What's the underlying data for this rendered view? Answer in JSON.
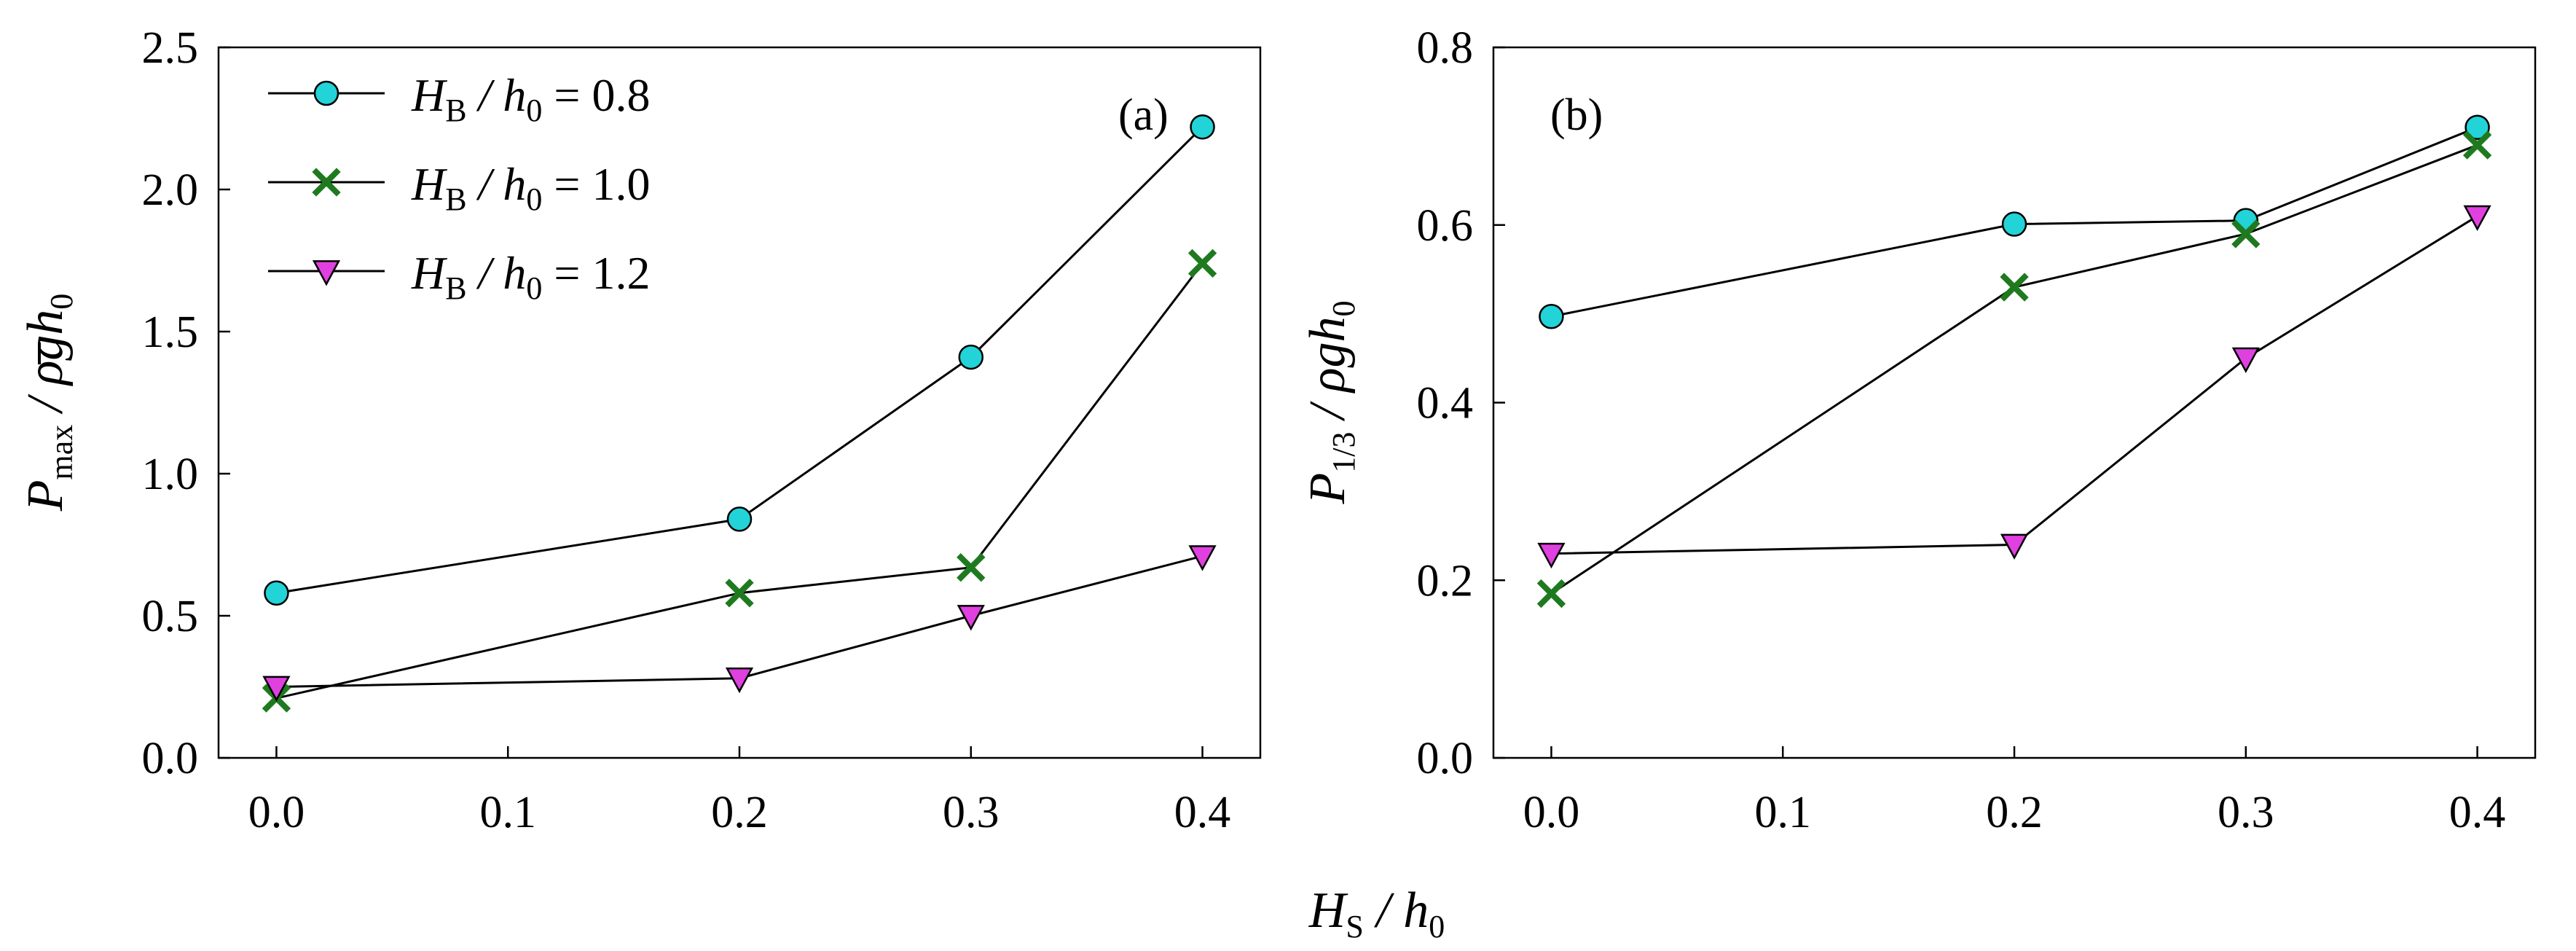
{
  "chart_data": [
    {
      "type": "line",
      "panel_label": "(a)",
      "ylabel": "P̄max / ρgh0",
      "ylabel_parts": {
        "symbol": "P",
        "subscript": "max",
        "rest": " / ρgh",
        "rest_sub": "0"
      },
      "xlabel": "HS / h0",
      "x": [
        0.0,
        0.2,
        0.3,
        0.4
      ],
      "xlim": [
        -0.025,
        0.425
      ],
      "ylim": [
        0.0,
        2.5
      ],
      "xticks": [
        "0.0",
        "0.1",
        "0.2",
        "0.3",
        "0.4"
      ],
      "xtick_values": [
        0.0,
        0.1,
        0.2,
        0.3,
        0.4
      ],
      "yticks": [
        "0.0",
        "0.5",
        "1.0",
        "1.5",
        "2.0",
        "2.5"
      ],
      "ytick_values": [
        0.0,
        0.5,
        1.0,
        1.5,
        2.0,
        2.5
      ],
      "legend_position": "top-left",
      "series": [
        {
          "name": "HB / h0 = 0.8",
          "values": [
            0.58,
            0.84,
            1.41,
            2.22
          ],
          "marker": "circle",
          "color": "#22d3d8"
        },
        {
          "name": "HB / h0 = 1.0",
          "values": [
            0.21,
            0.58,
            0.67,
            1.74
          ],
          "marker": "x",
          "color": "#1f7a1f"
        },
        {
          "name": "HB / h0 = 1.2",
          "values": [
            0.25,
            0.28,
            0.5,
            0.71
          ],
          "marker": "triangle-down",
          "color": "#e040e0"
        }
      ]
    },
    {
      "type": "line",
      "panel_label": "(b)",
      "ylabel": "P̄1/3 / ρgh0",
      "ylabel_parts": {
        "symbol": "P",
        "subscript": "1/3",
        "rest": " / ρgh",
        "rest_sub": "0"
      },
      "xlabel": "HS / h0",
      "x": [
        0.0,
        0.2,
        0.3,
        0.4
      ],
      "xlim": [
        -0.025,
        0.425
      ],
      "ylim": [
        0.0,
        0.8
      ],
      "xticks": [
        "0.0",
        "0.1",
        "0.2",
        "0.3",
        "0.4"
      ],
      "xtick_values": [
        0.0,
        0.1,
        0.2,
        0.3,
        0.4
      ],
      "yticks": [
        "0.0",
        "0.2",
        "0.4",
        "0.6",
        "0.8"
      ],
      "ytick_values": [
        0.0,
        0.2,
        0.4,
        0.6,
        0.8
      ],
      "series": [
        {
          "name": "HB / h0 = 0.8",
          "values": [
            0.497,
            0.601,
            0.605,
            0.71
          ],
          "marker": "circle",
          "color": "#22d3d8"
        },
        {
          "name": "HB / h0 = 1.0",
          "values": [
            0.185,
            0.53,
            0.59,
            0.69
          ],
          "marker": "x",
          "color": "#1f7a1f"
        },
        {
          "name": "HB / h0 = 1.2",
          "values": [
            0.23,
            0.24,
            0.45,
            0.61
          ],
          "marker": "triangle-down",
          "color": "#e040e0"
        }
      ]
    }
  ],
  "legend": [
    {
      "label_sym": "H",
      "label_sub": "B",
      "label_mid": " / h",
      "label_sub2": "0",
      "label_val": " = 0.8"
    },
    {
      "label_sym": "H",
      "label_sub": "B",
      "label_mid": " / h",
      "label_sub2": "0",
      "label_val": " = 1.0"
    },
    {
      "label_sym": "H",
      "label_sub": "B",
      "label_mid": " / h",
      "label_sub2": "0",
      "label_val": " = 1.2"
    }
  ],
  "shared_xlabel": {
    "symbol": "H",
    "sub": "S",
    "rest": " / h",
    "rest_sub": "0"
  }
}
